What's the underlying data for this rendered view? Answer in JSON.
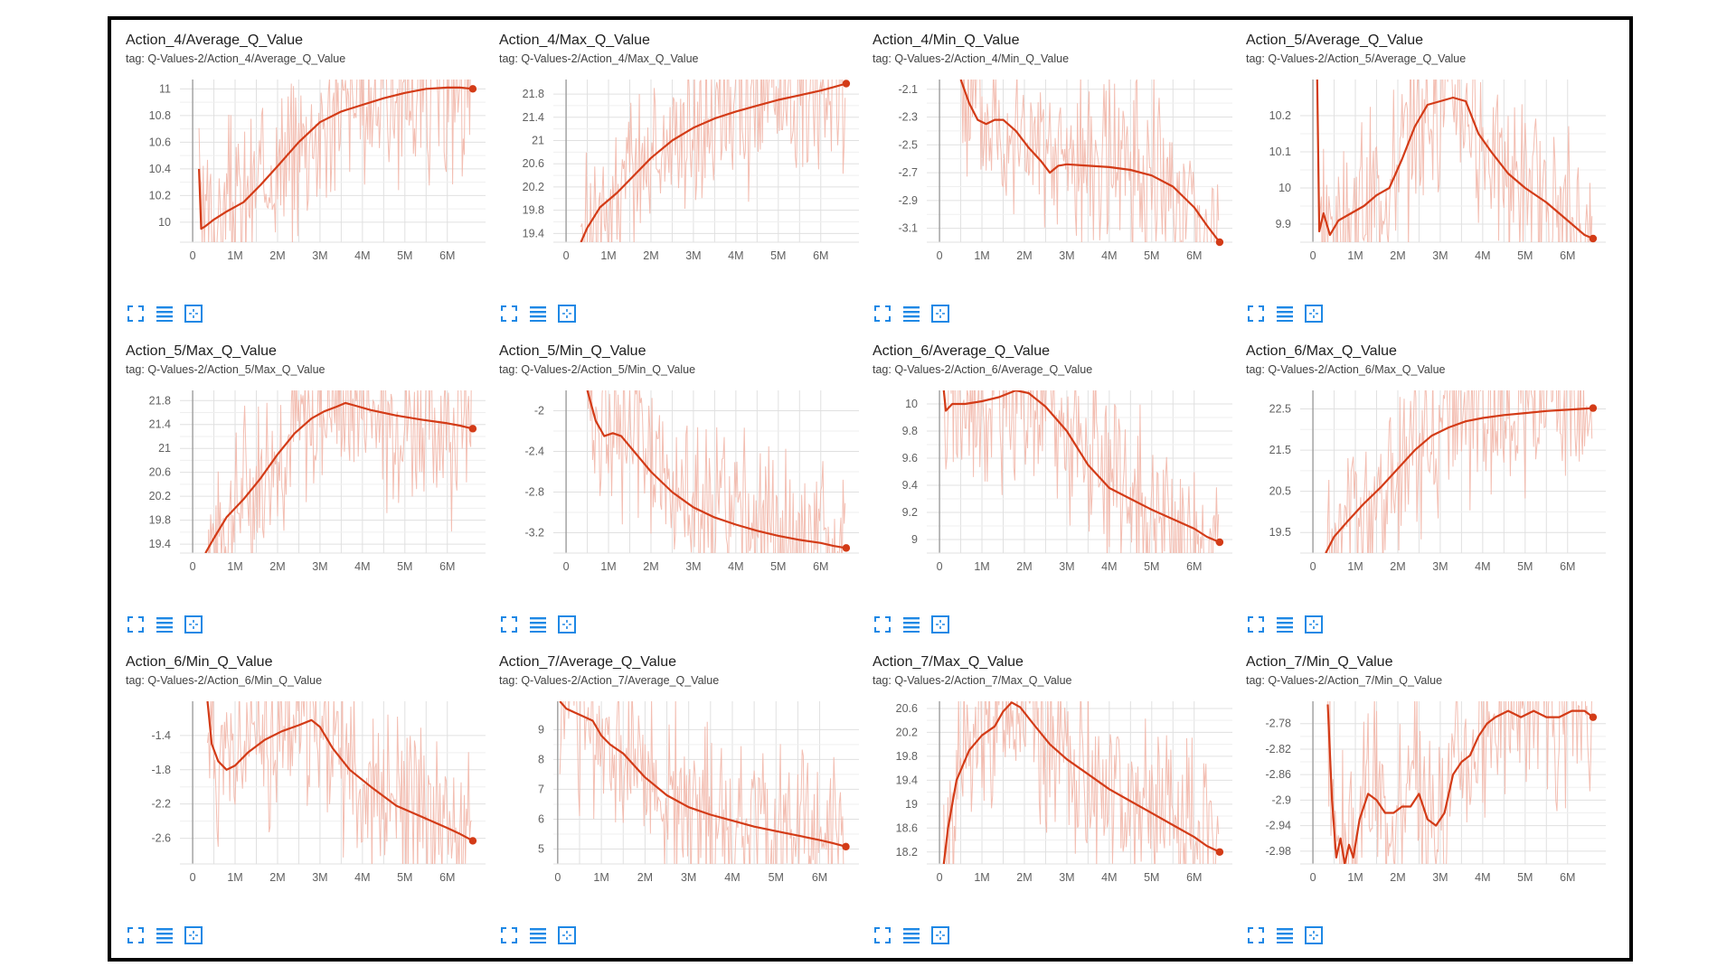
{
  "colors": {
    "smoothed": "#d33b17",
    "raw": "#f1b3a5",
    "grid": "#e0e0e0",
    "axis": "#9e9e9e",
    "tick": "#616161",
    "button": "#1e88e5",
    "frame": "#000000"
  },
  "icons": [
    "fullscreen-icon",
    "toggle-y-log-icon",
    "fit-domain-icon"
  ],
  "x_tick_labels": [
    "0",
    "1M",
    "2M",
    "3M",
    "4M",
    "5M",
    "6M"
  ],
  "chart_data": [
    {
      "type": "line",
      "title": "Action_4/Average_Q_Value",
      "tag": "tag: Q-Values-2/Action_4/Average_Q_Value",
      "xlim": [
        -0.3,
        6.9
      ],
      "ylim": [
        9.85,
        11.07
      ],
      "yticks": [
        {
          "v": 11,
          "l": "11"
        },
        {
          "v": 10.8,
          "l": "10.8"
        },
        {
          "v": 10.6,
          "l": "10.6"
        },
        {
          "v": 10.4,
          "l": "10.4"
        },
        {
          "v": 10.2,
          "l": "10.2"
        },
        {
          "v": 10,
          "l": "10"
        }
      ],
      "series": [
        {
          "x": [
            0.15,
            0.2,
            0.3,
            0.5,
            0.8,
            1.2,
            1.6,
            2.0,
            2.5,
            3.0,
            3.5,
            4.0,
            4.5,
            5.0,
            5.5,
            6.0,
            6.3,
            6.6
          ],
          "y": [
            10.4,
            9.95,
            9.97,
            10.02,
            10.08,
            10.15,
            10.28,
            10.42,
            10.6,
            10.75,
            10.83,
            10.88,
            10.93,
            10.97,
            11.0,
            11.01,
            11.01,
            11.0
          ]
        }
      ]
    },
    {
      "type": "line",
      "title": "Action_4/Max_Q_Value",
      "tag": "tag: Q-Values-2/Action_4/Max_Q_Value",
      "xlim": [
        -0.3,
        6.9
      ],
      "ylim": [
        19.25,
        22.05
      ],
      "yticks": [
        {
          "v": 21.8,
          "l": "21.8"
        },
        {
          "v": 21.4,
          "l": "21.4"
        },
        {
          "v": 21,
          "l": "21"
        },
        {
          "v": 20.6,
          "l": "20.6"
        },
        {
          "v": 20.2,
          "l": "20.2"
        },
        {
          "v": 19.8,
          "l": "19.8"
        },
        {
          "v": 19.4,
          "l": "19.4"
        }
      ],
      "series": [
        {
          "x": [
            0.35,
            0.5,
            0.8,
            1.2,
            1.6,
            2.0,
            2.5,
            3.0,
            3.5,
            4.0,
            4.5,
            5.0,
            5.5,
            6.0,
            6.3,
            6.6
          ],
          "y": [
            19.25,
            19.5,
            19.85,
            20.1,
            20.4,
            20.7,
            21.0,
            21.22,
            21.38,
            21.5,
            21.6,
            21.7,
            21.78,
            21.86,
            21.92,
            21.98
          ]
        }
      ]
    },
    {
      "type": "line",
      "title": "Action_4/Min_Q_Value",
      "tag": "tag: Q-Values-2/Action_4/Min_Q_Value",
      "xlim": [
        -0.3,
        6.9
      ],
      "ylim": [
        -3.2,
        -2.03
      ],
      "yticks": [
        {
          "v": -2.1,
          "l": "-2.1"
        },
        {
          "v": -2.3,
          "l": "-2.3"
        },
        {
          "v": -2.5,
          "l": "-2.5"
        },
        {
          "v": -2.7,
          "l": "-2.7"
        },
        {
          "v": -2.9,
          "l": "-2.9"
        },
        {
          "v": -3.1,
          "l": "-3.1"
        }
      ],
      "series": [
        {
          "x": [
            0.5,
            0.7,
            0.9,
            1.1,
            1.3,
            1.5,
            1.8,
            2.1,
            2.4,
            2.6,
            2.8,
            3.0,
            3.5,
            4.0,
            4.5,
            5.0,
            5.5,
            6.0,
            6.3,
            6.6
          ],
          "y": [
            -2.03,
            -2.2,
            -2.32,
            -2.35,
            -2.32,
            -2.32,
            -2.4,
            -2.52,
            -2.62,
            -2.7,
            -2.65,
            -2.64,
            -2.65,
            -2.66,
            -2.68,
            -2.72,
            -2.8,
            -2.95,
            -3.08,
            -3.2
          ]
        }
      ]
    },
    {
      "type": "line",
      "title": "Action_5/Average_Q_Value",
      "tag": "tag: Q-Values-2/Action_5/Average_Q_Value",
      "xlim": [
        -0.3,
        6.9
      ],
      "ylim": [
        9.85,
        10.3
      ],
      "yticks": [
        {
          "v": 10.2,
          "l": "10.2"
        },
        {
          "v": 10.1,
          "l": "10.1"
        },
        {
          "v": 10,
          "l": "10"
        },
        {
          "v": 9.9,
          "l": "9.9"
        }
      ],
      "series": [
        {
          "x": [
            0.1,
            0.15,
            0.25,
            0.4,
            0.6,
            0.9,
            1.2,
            1.5,
            1.8,
            2.1,
            2.4,
            2.7,
            3.0,
            3.3,
            3.6,
            3.9,
            4.2,
            4.6,
            5.0,
            5.5,
            6.0,
            6.4,
            6.6
          ],
          "y": [
            10.3,
            9.88,
            9.93,
            9.87,
            9.91,
            9.93,
            9.95,
            9.98,
            10.0,
            10.08,
            10.17,
            10.23,
            10.24,
            10.25,
            10.24,
            10.15,
            10.1,
            10.04,
            10.0,
            9.96,
            9.91,
            9.87,
            9.86
          ]
        }
      ]
    },
    {
      "type": "line",
      "title": "Action_5/Max_Q_Value",
      "tag": "tag: Q-Values-2/Action_5/Max_Q_Value",
      "xlim": [
        -0.3,
        6.9
      ],
      "ylim": [
        19.25,
        21.97
      ],
      "yticks": [
        {
          "v": 21.8,
          "l": "21.8"
        },
        {
          "v": 21.4,
          "l": "21.4"
        },
        {
          "v": 21,
          "l": "21"
        },
        {
          "v": 20.6,
          "l": "20.6"
        },
        {
          "v": 20.2,
          "l": "20.2"
        },
        {
          "v": 19.8,
          "l": "19.8"
        },
        {
          "v": 19.4,
          "l": "19.4"
        }
      ],
      "series": [
        {
          "x": [
            0.3,
            0.5,
            0.8,
            1.2,
            1.6,
            2.0,
            2.4,
            2.8,
            3.1,
            3.4,
            3.6,
            3.8,
            4.2,
            4.8,
            5.4,
            6.0,
            6.3,
            6.6
          ],
          "y": [
            19.25,
            19.5,
            19.85,
            20.15,
            20.5,
            20.9,
            21.25,
            21.5,
            21.62,
            21.7,
            21.76,
            21.72,
            21.64,
            21.55,
            21.48,
            21.42,
            21.38,
            21.33
          ]
        }
      ]
    },
    {
      "type": "line",
      "title": "Action_5/Min_Q_Value",
      "tag": "tag: Q-Values-2/Action_5/Min_Q_Value",
      "xlim": [
        -0.3,
        6.9
      ],
      "ylim": [
        -3.4,
        -1.8
      ],
      "yticks": [
        {
          "v": -2,
          "l": "-2"
        },
        {
          "v": -2.4,
          "l": "-2.4"
        },
        {
          "v": -2.8,
          "l": "-2.8"
        },
        {
          "v": -3.2,
          "l": "-3.2"
        }
      ],
      "series": [
        {
          "x": [
            0.5,
            0.7,
            0.9,
            1.1,
            1.3,
            1.6,
            2.0,
            2.5,
            3.0,
            3.5,
            4.0,
            4.5,
            5.0,
            5.5,
            6.0,
            6.3,
            6.6
          ],
          "y": [
            -1.8,
            -2.1,
            -2.25,
            -2.22,
            -2.25,
            -2.4,
            -2.6,
            -2.8,
            -2.95,
            -3.05,
            -3.12,
            -3.18,
            -3.23,
            -3.27,
            -3.3,
            -3.33,
            -3.35
          ]
        }
      ]
    },
    {
      "type": "line",
      "title": "Action_6/Average_Q_Value",
      "tag": "tag: Q-Values-2/Action_6/Average_Q_Value",
      "xlim": [
        -0.3,
        6.9
      ],
      "ylim": [
        8.9,
        10.1
      ],
      "yticks": [
        {
          "v": 10,
          "l": "10"
        },
        {
          "v": 9.8,
          "l": "9.8"
        },
        {
          "v": 9.6,
          "l": "9.6"
        },
        {
          "v": 9.4,
          "l": "9.4"
        },
        {
          "v": 9.2,
          "l": "9.2"
        },
        {
          "v": 9,
          "l": "9"
        }
      ],
      "series": [
        {
          "x": [
            0.1,
            0.15,
            0.3,
            0.6,
            1.0,
            1.4,
            1.8,
            2.1,
            2.5,
            3.0,
            3.5,
            4.0,
            4.5,
            5.0,
            5.5,
            6.0,
            6.3,
            6.6
          ],
          "y": [
            10.1,
            9.95,
            10.0,
            10.0,
            10.02,
            10.05,
            10.1,
            10.08,
            9.98,
            9.8,
            9.55,
            9.38,
            9.3,
            9.22,
            9.15,
            9.08,
            9.02,
            8.98
          ]
        }
      ]
    },
    {
      "type": "line",
      "title": "Action_6/Max_Q_Value",
      "tag": "tag: Q-Values-2/Action_6/Max_Q_Value",
      "xlim": [
        -0.3,
        6.9
      ],
      "ylim": [
        19.0,
        22.95
      ],
      "yticks": [
        {
          "v": 22.5,
          "l": "22.5"
        },
        {
          "v": 21.5,
          "l": "21.5"
        },
        {
          "v": 20.5,
          "l": "20.5"
        },
        {
          "v": 19.5,
          "l": "19.5"
        }
      ],
      "series": [
        {
          "x": [
            0.3,
            0.5,
            0.8,
            1.2,
            1.6,
            2.0,
            2.4,
            2.8,
            3.2,
            3.6,
            4.0,
            4.5,
            5.0,
            5.5,
            6.0,
            6.3,
            6.6
          ],
          "y": [
            19.0,
            19.4,
            19.75,
            20.2,
            20.6,
            21.05,
            21.5,
            21.85,
            22.05,
            22.2,
            22.28,
            22.35,
            22.4,
            22.45,
            22.48,
            22.5,
            22.52
          ]
        }
      ]
    },
    {
      "type": "line",
      "title": "Action_6/Min_Q_Value",
      "tag": "tag: Q-Values-2/Action_6/Min_Q_Value",
      "xlim": [
        -0.3,
        6.9
      ],
      "ylim": [
        -2.9,
        -1.0
      ],
      "yticks": [
        {
          "v": -1.4,
          "l": "-1.4"
        },
        {
          "v": -1.8,
          "l": "-1.8"
        },
        {
          "v": -2.2,
          "l": "-2.2"
        },
        {
          "v": -2.6,
          "l": "-2.6"
        }
      ],
      "series": [
        {
          "x": [
            0.35,
            0.45,
            0.6,
            0.8,
            1.0,
            1.3,
            1.7,
            2.1,
            2.5,
            2.8,
            3.0,
            3.3,
            3.7,
            4.2,
            4.8,
            5.4,
            6.0,
            6.3,
            6.6
          ],
          "y": [
            -1.0,
            -1.5,
            -1.7,
            -1.8,
            -1.75,
            -1.6,
            -1.45,
            -1.35,
            -1.28,
            -1.22,
            -1.3,
            -1.55,
            -1.8,
            -2.0,
            -2.22,
            -2.35,
            -2.48,
            -2.55,
            -2.63
          ]
        }
      ]
    },
    {
      "type": "line",
      "title": "Action_7/Average_Q_Value",
      "tag": "tag: Q-Values-2/Action_7/Average_Q_Value",
      "xlim": [
        -0.1,
        6.9
      ],
      "ylim": [
        4.5,
        9.95
      ],
      "yticks": [
        {
          "v": 9,
          "l": "9"
        },
        {
          "v": 8,
          "l": "8"
        },
        {
          "v": 7,
          "l": "7"
        },
        {
          "v": 6,
          "l": "6"
        },
        {
          "v": 5,
          "l": "5"
        }
      ],
      "series": [
        {
          "x": [
            0.05,
            0.2,
            0.5,
            0.8,
            1.0,
            1.2,
            1.5,
            2.0,
            2.5,
            3.0,
            3.5,
            4.0,
            4.5,
            5.0,
            5.5,
            6.0,
            6.3,
            6.6
          ],
          "y": [
            9.95,
            9.7,
            9.5,
            9.3,
            8.8,
            8.5,
            8.2,
            7.4,
            6.8,
            6.4,
            6.15,
            5.95,
            5.75,
            5.6,
            5.45,
            5.3,
            5.2,
            5.08
          ]
        }
      ]
    },
    {
      "type": "line",
      "title": "Action_7/Max_Q_Value",
      "tag": "tag: Q-Values-2/Action_7/Max_Q_Value",
      "xlim": [
        -0.3,
        6.9
      ],
      "ylim": [
        18.0,
        20.72
      ],
      "yticks": [
        {
          "v": 20.6,
          "l": "20.6"
        },
        {
          "v": 20.2,
          "l": "20.2"
        },
        {
          "v": 19.8,
          "l": "19.8"
        },
        {
          "v": 19.4,
          "l": "19.4"
        },
        {
          "v": 19,
          "l": "19"
        },
        {
          "v": 18.6,
          "l": "18.6"
        },
        {
          "v": 18.2,
          "l": "18.2"
        }
      ],
      "series": [
        {
          "x": [
            0.1,
            0.2,
            0.4,
            0.7,
            1.0,
            1.3,
            1.5,
            1.7,
            1.9,
            2.2,
            2.6,
            3.0,
            3.5,
            4.0,
            4.5,
            5.0,
            5.5,
            6.0,
            6.3,
            6.6
          ],
          "y": [
            18.0,
            18.6,
            19.4,
            19.9,
            20.15,
            20.3,
            20.55,
            20.7,
            20.62,
            20.35,
            20.0,
            19.75,
            19.5,
            19.25,
            19.05,
            18.85,
            18.65,
            18.45,
            18.3,
            18.2
          ]
        }
      ]
    },
    {
      "type": "line",
      "title": "Action_7/Min_Q_Value",
      "tag": "tag: Q-Values-2/Action_7/Min_Q_Value",
      "xlim": [
        -0.3,
        6.9
      ],
      "ylim": [
        -3.0,
        -2.745
      ],
      "yticks": [
        {
          "v": -2.78,
          "l": "-2.78"
        },
        {
          "v": -2.82,
          "l": "-2.82"
        },
        {
          "v": -2.86,
          "l": "-2.86"
        },
        {
          "v": -2.9,
          "l": "-2.9"
        },
        {
          "v": -2.94,
          "l": "-2.94"
        },
        {
          "v": -2.98,
          "l": "-2.98"
        }
      ],
      "series": [
        {
          "x": [
            0.35,
            0.45,
            0.55,
            0.65,
            0.75,
            0.85,
            0.95,
            1.1,
            1.3,
            1.5,
            1.7,
            1.9,
            2.1,
            2.3,
            2.5,
            2.7,
            2.9,
            3.1,
            3.3,
            3.5,
            3.7,
            3.9,
            4.1,
            4.3,
            4.6,
            4.9,
            5.2,
            5.5,
            5.8,
            6.1,
            6.4,
            6.6
          ],
          "y": [
            -2.75,
            -2.9,
            -2.99,
            -2.96,
            -3.0,
            -2.97,
            -2.99,
            -2.93,
            -2.89,
            -2.9,
            -2.92,
            -2.92,
            -2.91,
            -2.91,
            -2.89,
            -2.93,
            -2.94,
            -2.92,
            -2.86,
            -2.84,
            -2.83,
            -2.8,
            -2.78,
            -2.77,
            -2.76,
            -2.77,
            -2.76,
            -2.77,
            -2.77,
            -2.76,
            -2.76,
            -2.77
          ]
        }
      ]
    }
  ]
}
